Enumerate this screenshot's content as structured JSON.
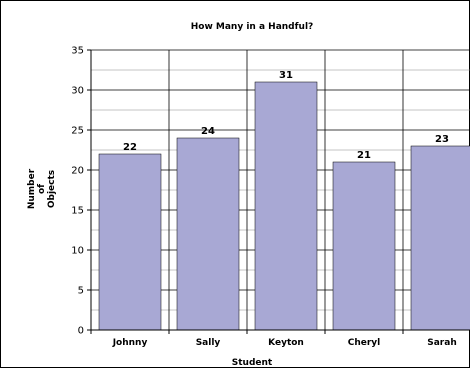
{
  "chart_data": {
    "type": "bar",
    "title": "How Many in a Handful?",
    "xlabel": "Student",
    "ylabel_lines": [
      "Number",
      "of",
      "Objects"
    ],
    "categories": [
      "Johnny",
      "Sally",
      "Keyton",
      "Cheryl",
      "Sarah"
    ],
    "values": [
      22,
      24,
      31,
      21,
      23
    ],
    "data_labels": [
      "22",
      "24",
      "31",
      "21",
      "23"
    ],
    "ylim": [
      0,
      35
    ],
    "yticks": [
      0,
      5,
      10,
      15,
      20,
      25,
      30,
      35
    ],
    "bar_color": "#a8a8d4",
    "grid": true
  }
}
